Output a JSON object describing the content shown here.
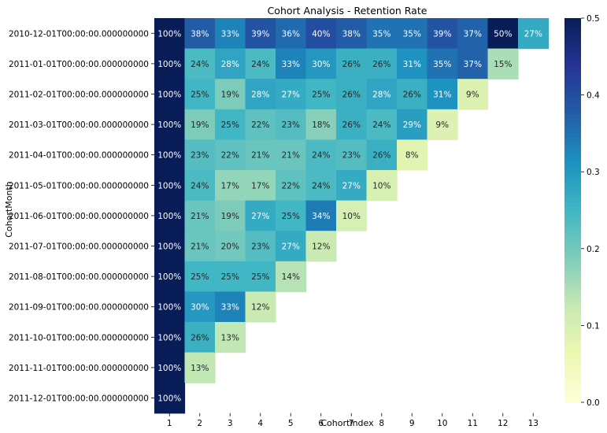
{
  "chart_data": {
    "type": "heatmap",
    "title": "Cohort Analysis - Retention Rate",
    "xlabel": "CohortIndex",
    "ylabel": "CohortMonth",
    "x_categories": [
      "1",
      "2",
      "3",
      "4",
      "5",
      "6",
      "7",
      "8",
      "9",
      "10",
      "11",
      "12",
      "13"
    ],
    "y_categories": [
      "2010-12-01T00:00:00.000000000",
      "2011-01-01T00:00:00.000000000",
      "2011-02-01T00:00:00.000000000",
      "2011-03-01T00:00:00.000000000",
      "2011-04-01T00:00:00.000000000",
      "2011-05-01T00:00:00.000000000",
      "2011-06-01T00:00:00.000000000",
      "2011-07-01T00:00:00.000000000",
      "2011-08-01T00:00:00.000000000",
      "2011-09-01T00:00:00.000000000",
      "2011-10-01T00:00:00.000000000",
      "2011-11-01T00:00:00.000000000",
      "2011-12-01T00:00:00.000000000"
    ],
    "values": [
      [
        1.0,
        0.38,
        0.33,
        0.39,
        0.36,
        0.4,
        0.38,
        0.35,
        0.35,
        0.39,
        0.37,
        0.5,
        0.27
      ],
      [
        1.0,
        0.24,
        0.28,
        0.24,
        0.33,
        0.3,
        0.26,
        0.26,
        0.31,
        0.35,
        0.37,
        0.15
      ],
      [
        1.0,
        0.25,
        0.19,
        0.28,
        0.27,
        0.25,
        0.26,
        0.28,
        0.26,
        0.31,
        0.09
      ],
      [
        1.0,
        0.19,
        0.25,
        0.22,
        0.23,
        0.18,
        0.26,
        0.24,
        0.29,
        0.09
      ],
      [
        1.0,
        0.23,
        0.22,
        0.21,
        0.21,
        0.24,
        0.23,
        0.26,
        0.08
      ],
      [
        1.0,
        0.24,
        0.17,
        0.17,
        0.22,
        0.24,
        0.27,
        0.1
      ],
      [
        1.0,
        0.21,
        0.19,
        0.27,
        0.25,
        0.34,
        0.1
      ],
      [
        1.0,
        0.21,
        0.2,
        0.23,
        0.27,
        0.12
      ],
      [
        1.0,
        0.25,
        0.25,
        0.25,
        0.14
      ],
      [
        1.0,
        0.3,
        0.33,
        0.12
      ],
      [
        1.0,
        0.26,
        0.13
      ],
      [
        1.0,
        0.13
      ],
      [
        1.0
      ]
    ],
    "labels": [
      [
        "100%",
        "38%",
        "33%",
        "39%",
        "36%",
        "40%",
        "38%",
        "35%",
        "35%",
        "39%",
        "37%",
        "50%",
        "27%"
      ],
      [
        "100%",
        "24%",
        "28%",
        "24%",
        "33%",
        "30%",
        "26%",
        "26%",
        "31%",
        "35%",
        "37%",
        "15%"
      ],
      [
        "100%",
        "25%",
        "19%",
        "28%",
        "27%",
        "25%",
        "26%",
        "28%",
        "26%",
        "31%",
        "9%"
      ],
      [
        "100%",
        "19%",
        "25%",
        "22%",
        "23%",
        "18%",
        "26%",
        "24%",
        "29%",
        "9%"
      ],
      [
        "100%",
        "23%",
        "22%",
        "21%",
        "21%",
        "24%",
        "23%",
        "26%",
        "8%"
      ],
      [
        "100%",
        "24%",
        "17%",
        "17%",
        "22%",
        "24%",
        "27%",
        "10%"
      ],
      [
        "100%",
        "21%",
        "19%",
        "27%",
        "25%",
        "34%",
        "10%"
      ],
      [
        "100%",
        "21%",
        "20%",
        "23%",
        "27%",
        "12%"
      ],
      [
        "100%",
        "25%",
        "25%",
        "25%",
        "14%"
      ],
      [
        "100%",
        "30%",
        "33%",
        "12%"
      ],
      [
        "100%",
        "26%",
        "13%"
      ],
      [
        "100%",
        "13%"
      ],
      [
        "100%"
      ]
    ],
    "colormap": "YlGnBu",
    "vmin": 0.0,
    "vmax": 0.5,
    "colorbar_ticks": [
      "0.0",
      "0.1",
      "0.2",
      "0.3",
      "0.4",
      "0.5"
    ]
  }
}
